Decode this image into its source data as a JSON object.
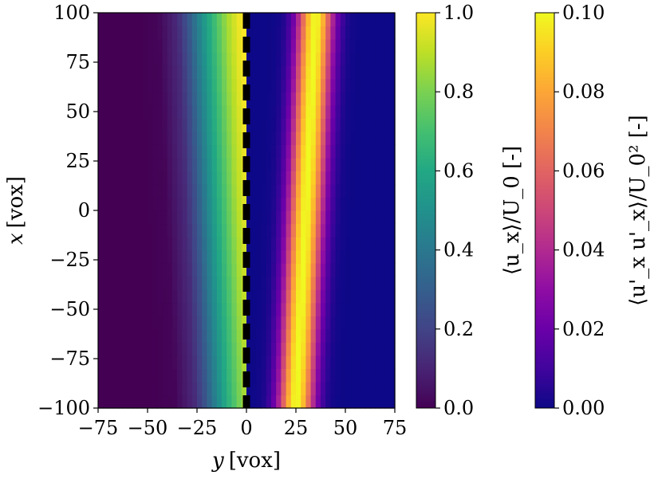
{
  "chart_data": [
    {
      "type": "heatmap",
      "title": "",
      "xlabel_var": "y",
      "xlabel_unit": "[vox]",
      "ylabel_var": "x",
      "ylabel_unit": "[vox]",
      "xlim": [
        -75,
        75
      ],
      "ylim": [
        -100,
        100
      ],
      "xticks": [
        -75,
        -50,
        -25,
        0,
        25,
        50,
        75
      ],
      "yticks": [
        -100,
        -75,
        -50,
        -25,
        0,
        25,
        50,
        75,
        100
      ],
      "grid": false,
      "layers": [
        {
          "name": "mean_velocity",
          "field": "⟨u_x⟩/U_0",
          "colormap": "viridis",
          "region_y": [
            -75,
            0
          ],
          "profile_y": [
            -75,
            -55,
            -45,
            -35,
            -30,
            -25,
            -20,
            -15,
            -10,
            -5,
            -2,
            0
          ],
          "profile_value_at_x_top": [
            0.0,
            0.0,
            0.01,
            0.12,
            0.25,
            0.42,
            0.58,
            0.72,
            0.86,
            0.96,
            1.0,
            1.0
          ],
          "front_shift_y_at_x_bottom": 9
        },
        {
          "name": "velocity_variance",
          "field": "⟨u'_x u'_x⟩/U_0²",
          "colormap": "plasma",
          "region_y": [
            0,
            75
          ],
          "peak_y_at_x_top": 35,
          "peak_y_at_x_bottom": 25,
          "peak_value": 0.1,
          "peak_width_y": 9
        }
      ],
      "divider": {
        "y": 0,
        "style": "dashed",
        "color": "#000000"
      },
      "colorbars": [
        {
          "label": "⟨u_x⟩/U_0 [-]",
          "colormap": "viridis",
          "range": [
            0.0,
            1.0
          ],
          "ticks": [
            "0.0",
            "0.2",
            "0.4",
            "0.6",
            "0.8",
            "1.0"
          ]
        },
        {
          "label": "⟨u'_x u'_x⟩/U_0² [-]",
          "colormap": "plasma",
          "range": [
            0.0,
            0.1
          ],
          "ticks": [
            "0.00",
            "0.02",
            "0.04",
            "0.06",
            "0.08",
            "0.10"
          ]
        }
      ]
    }
  ]
}
